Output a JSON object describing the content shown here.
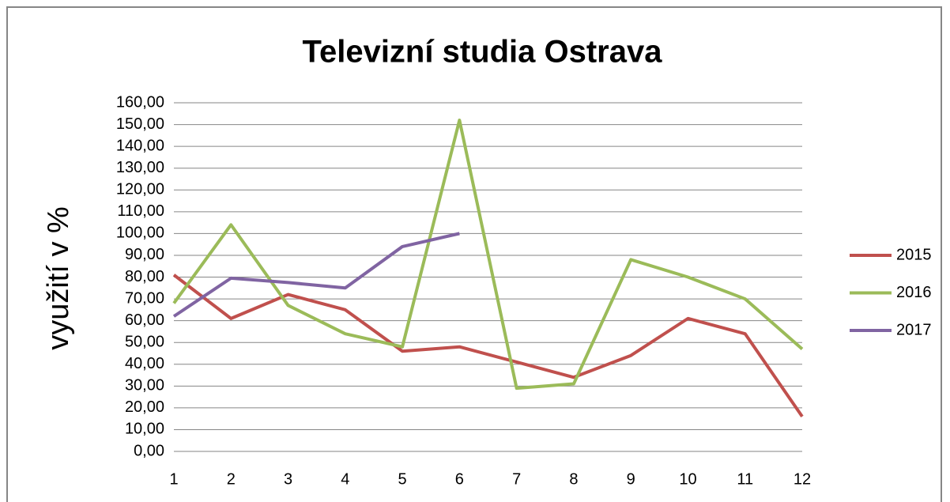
{
  "chart_data": {
    "type": "line",
    "title": "Televizní studia Ostrava",
    "ylabel": "využití v %",
    "categories": [
      "1",
      "2",
      "3",
      "4",
      "5",
      "6",
      "7",
      "8",
      "9",
      "10",
      "11",
      "12"
    ],
    "series": [
      {
        "name": "2015",
        "color": "#c0504d",
        "values": [
          81,
          61,
          72,
          65,
          46,
          48,
          41,
          34,
          44,
          61,
          54,
          16
        ]
      },
      {
        "name": "2016",
        "color": "#9bbb59",
        "values": [
          68,
          104,
          67,
          54,
          48,
          152,
          29,
          31,
          88,
          80,
          70,
          47
        ]
      },
      {
        "name": "2017",
        "color": "#8064a2",
        "values": [
          62,
          79.5,
          77.5,
          75,
          94,
          100,
          null,
          null,
          null,
          null,
          null,
          null
        ]
      }
    ],
    "ylim": [
      0,
      160
    ],
    "yticks": [
      {
        "value": 0,
        "label": "0,00"
      },
      {
        "value": 10,
        "label": "10,00"
      },
      {
        "value": 20,
        "label": "20,00"
      },
      {
        "value": 30,
        "label": "30,00"
      },
      {
        "value": 40,
        "label": "40,00"
      },
      {
        "value": 50,
        "label": "50,00"
      },
      {
        "value": 60,
        "label": "60,00"
      },
      {
        "value": 70,
        "label": "70,00"
      },
      {
        "value": 80,
        "label": "80,00"
      },
      {
        "value": 90,
        "label": "90,00"
      },
      {
        "value": 100,
        "label": "100,00"
      },
      {
        "value": 110,
        "label": "110,00"
      },
      {
        "value": 120,
        "label": "120,00"
      },
      {
        "value": 130,
        "label": "130,00"
      },
      {
        "value": 140,
        "label": "140,00"
      },
      {
        "value": 150,
        "label": "150,00"
      },
      {
        "value": 160,
        "label": "160,00"
      }
    ],
    "grid": true,
    "legend": "right"
  }
}
